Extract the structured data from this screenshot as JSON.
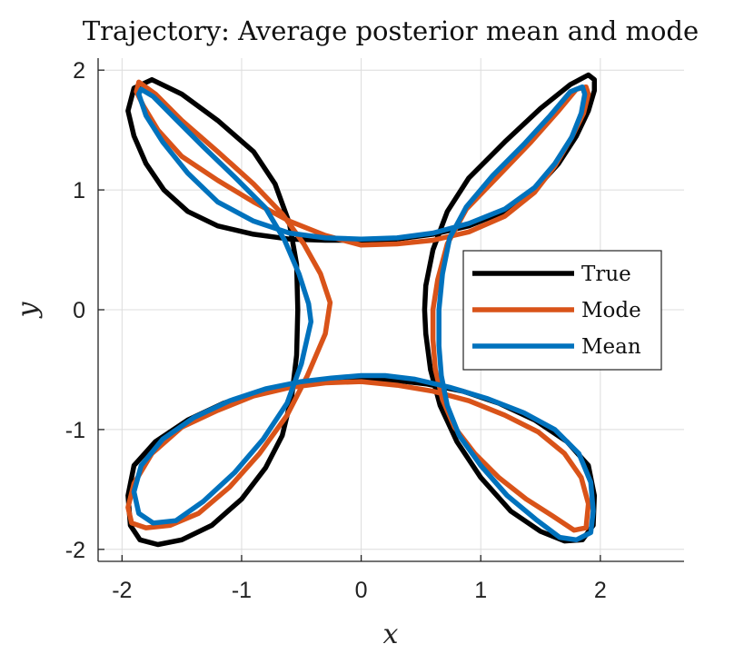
{
  "chart_data": {
    "type": "line",
    "title": "Trajectory: Average posterior mean and mode",
    "xlabel": "x",
    "ylabel": "y",
    "xlim": [
      -2.2,
      2.7
    ],
    "ylim": [
      -2.1,
      2.1
    ],
    "xticks": [
      -2,
      -1,
      0,
      1,
      2
    ],
    "yticks": [
      -2,
      -1,
      0,
      1,
      2
    ],
    "xtick_labels": [
      "-2",
      "-1",
      "0",
      "1",
      "2"
    ],
    "ytick_labels": [
      "-2",
      "-1",
      "0",
      "1",
      "2"
    ],
    "grid": true,
    "legend_position": "right",
    "series": [
      {
        "name": "True",
        "color": "#000000",
        "x": [
          0.0,
          0.3,
          0.6,
          0.9,
          1.2,
          1.45,
          1.65,
          1.8,
          1.9,
          1.95,
          1.95,
          1.9,
          1.75,
          1.5,
          1.2,
          0.9,
          0.72,
          0.6,
          0.54,
          0.53,
          0.54,
          0.58,
          0.66,
          0.8,
          1.0,
          1.25,
          1.5,
          1.7,
          1.85,
          1.94,
          1.95,
          1.9,
          1.72,
          1.45,
          1.15,
          0.85,
          0.55,
          0.28,
          0.0,
          -0.28,
          -0.55,
          -0.85,
          -1.15,
          -1.45,
          -1.72,
          -1.9,
          -1.95,
          -1.93,
          -1.85,
          -1.7,
          -1.5,
          -1.25,
          -1.0,
          -0.8,
          -0.66,
          -0.58,
          -0.54,
          -0.53,
          -0.54,
          -0.6,
          -0.72,
          -0.9,
          -1.2,
          -1.5,
          -1.75,
          -1.9,
          -1.95,
          -1.9,
          -1.8,
          -1.65,
          -1.45,
          -1.2,
          -0.9,
          -0.6,
          -0.3,
          0.0
        ],
        "y": [
          0.58,
          0.59,
          0.63,
          0.7,
          0.82,
          1.0,
          1.22,
          1.45,
          1.66,
          1.83,
          1.92,
          1.96,
          1.88,
          1.68,
          1.4,
          1.1,
          0.82,
          0.5,
          0.2,
          0.0,
          -0.2,
          -0.5,
          -0.8,
          -1.1,
          -1.4,
          -1.68,
          -1.85,
          -1.93,
          -1.92,
          -1.8,
          -1.55,
          -1.3,
          -1.1,
          -0.92,
          -0.78,
          -0.68,
          -0.62,
          -0.59,
          -0.58,
          -0.59,
          -0.62,
          -0.68,
          -0.78,
          -0.92,
          -1.1,
          -1.3,
          -1.55,
          -1.8,
          -1.92,
          -1.96,
          -1.92,
          -1.8,
          -1.58,
          -1.32,
          -1.05,
          -0.72,
          -0.38,
          0.0,
          0.38,
          0.72,
          1.05,
          1.32,
          1.58,
          1.8,
          1.92,
          1.85,
          1.66,
          1.45,
          1.22,
          1.0,
          0.82,
          0.7,
          0.63,
          0.59,
          0.58,
          0.58
        ]
      },
      {
        "name": "Mode",
        "color": "#D95319",
        "x": [
          0.0,
          0.3,
          0.6,
          0.9,
          1.2,
          1.45,
          1.62,
          1.76,
          1.86,
          1.9,
          1.88,
          1.8,
          1.65,
          1.42,
          1.15,
          0.88,
          0.72,
          0.64,
          0.6,
          0.6,
          0.62,
          0.68,
          0.78,
          0.95,
          1.15,
          1.38,
          1.6,
          1.78,
          1.88,
          1.9,
          1.84,
          1.7,
          1.48,
          1.2,
          0.9,
          0.6,
          0.3,
          0.0,
          -0.3,
          -0.6,
          -0.9,
          -1.2,
          -1.5,
          -1.75,
          -1.9,
          -1.95,
          -1.92,
          -1.8,
          -1.6,
          -1.36,
          -1.1,
          -0.85,
          -0.62,
          -0.45,
          -0.3,
          -0.26,
          -0.34,
          -0.48,
          -0.66,
          -0.9,
          -1.2,
          -1.5,
          -1.72,
          -1.86,
          -1.88,
          -1.82,
          -1.7,
          -1.5,
          -1.2,
          -0.9,
          -0.6,
          -0.3,
          0.0
        ],
        "y": [
          0.54,
          0.55,
          0.58,
          0.65,
          0.78,
          0.98,
          1.2,
          1.44,
          1.64,
          1.8,
          1.86,
          1.84,
          1.66,
          1.4,
          1.12,
          0.84,
          0.55,
          0.25,
          0.0,
          -0.25,
          -0.5,
          -0.75,
          -0.98,
          -1.2,
          -1.4,
          -1.58,
          -1.72,
          -1.84,
          -1.82,
          -1.62,
          -1.4,
          -1.2,
          -1.02,
          -0.88,
          -0.76,
          -0.68,
          -0.63,
          -0.6,
          -0.61,
          -0.65,
          -0.72,
          -0.84,
          -0.98,
          -1.2,
          -1.45,
          -1.65,
          -1.78,
          -1.82,
          -1.8,
          -1.7,
          -1.48,
          -1.2,
          -0.88,
          -0.55,
          -0.2,
          0.06,
          0.3,
          0.55,
          0.8,
          1.05,
          1.32,
          1.58,
          1.8,
          1.9,
          1.82,
          1.7,
          1.5,
          1.28,
          1.08,
          0.9,
          0.74,
          0.62,
          0.54
        ]
      },
      {
        "name": "Mean",
        "color": "#0072BD",
        "x": [
          0.0,
          0.3,
          0.6,
          0.9,
          1.2,
          1.45,
          1.62,
          1.76,
          1.84,
          1.87,
          1.85,
          1.75,
          1.58,
          1.36,
          1.1,
          0.88,
          0.74,
          0.68,
          0.65,
          0.65,
          0.67,
          0.72,
          0.82,
          1.0,
          1.22,
          1.46,
          1.66,
          1.8,
          1.92,
          1.94,
          1.92,
          1.82,
          1.62,
          1.36,
          1.05,
          0.75,
          0.45,
          0.2,
          0.0,
          -0.25,
          -0.5,
          -0.8,
          -1.1,
          -1.4,
          -1.66,
          -1.84,
          -1.9,
          -1.86,
          -1.74,
          -1.55,
          -1.32,
          -1.06,
          -0.82,
          -0.62,
          -0.5,
          -0.42,
          -0.44,
          -0.52,
          -0.64,
          -0.8,
          -1.05,
          -1.32,
          -1.56,
          -1.74,
          -1.84,
          -1.86,
          -1.8,
          -1.66,
          -1.45,
          -1.2,
          -0.9,
          -0.6,
          -0.3,
          0.0
        ],
        "y": [
          0.59,
          0.6,
          0.64,
          0.72,
          0.84,
          1.02,
          1.22,
          1.44,
          1.64,
          1.8,
          1.86,
          1.82,
          1.62,
          1.38,
          1.12,
          0.86,
          0.6,
          0.3,
          0.0,
          -0.3,
          -0.55,
          -0.8,
          -1.05,
          -1.3,
          -1.55,
          -1.75,
          -1.9,
          -1.92,
          -1.86,
          -1.68,
          -1.44,
          -1.2,
          -1.0,
          -0.86,
          -0.74,
          -0.65,
          -0.58,
          -0.55,
          -0.55,
          -0.57,
          -0.6,
          -0.66,
          -0.76,
          -0.9,
          -1.08,
          -1.3,
          -1.52,
          -1.7,
          -1.78,
          -1.76,
          -1.6,
          -1.36,
          -1.08,
          -0.78,
          -0.45,
          -0.1,
          0.05,
          0.3,
          0.58,
          0.85,
          1.1,
          1.36,
          1.6,
          1.78,
          1.84,
          1.8,
          1.62,
          1.4,
          1.14,
          0.9,
          0.74,
          0.64,
          0.6,
          0.59
        ]
      }
    ]
  }
}
